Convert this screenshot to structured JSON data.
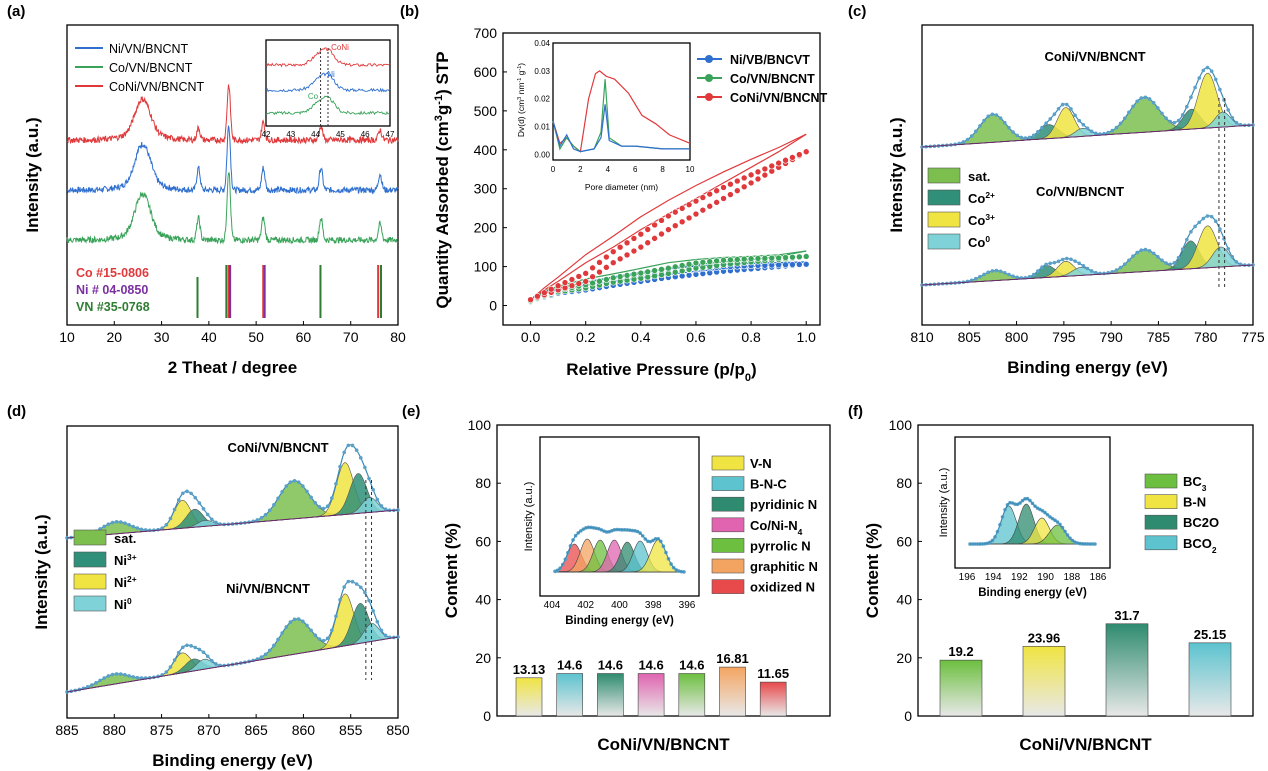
{
  "colors": {
    "blue": "#2e6fcf",
    "green": "#3aa35a",
    "red": "#e0393b",
    "darkred": "#c0282a",
    "dkgreen": "#2e7d32",
    "purple": "#7b2fa0",
    "sat": "#7cbf4f",
    "co2": "#2f8f78",
    "co3": "#f0e442",
    "co0": "#7fd3d8",
    "envelope": "#3a8bb5"
  },
  "panel_labels": [
    "(a)",
    "(b)",
    "(c)",
    "(d)",
    "(e)",
    "(f)"
  ],
  "chart_data": [
    {
      "panel": "(a)",
      "type": "line",
      "xlabel": "2 Theat / degree",
      "ylabel": "Intensity (a.u.)",
      "xlim": [
        10,
        80
      ],
      "xticks": [
        "10",
        "20",
        "30",
        "40",
        "50",
        "60",
        "70",
        "80"
      ],
      "series": [
        {
          "name": "Ni/VN/BNCNT",
          "color": "#2e6fcf"
        },
        {
          "name": "Co/VN/BNCNT",
          "color": "#3aa35a"
        },
        {
          "name": "CoNi/VN/BNCNT",
          "color": "#e0393b"
        }
      ],
      "peaks_deg": [
        26,
        37.8,
        44.2,
        51.5,
        63.7,
        76.2
      ],
      "reference_cards": [
        {
          "label": "Co #15-0806",
          "color": "#e0393b",
          "lines": [
            44.2,
            51.5,
            75.8
          ]
        },
        {
          "label": "Ni # 04-0850",
          "color": "#7b2fa0",
          "lines": [
            44.5,
            51.8,
            76.4
          ]
        },
        {
          "label": "VN #35-0768",
          "color": "#2e7d32",
          "lines": [
            37.6,
            43.7,
            63.6,
            76.4
          ]
        }
      ],
      "inset": {
        "xlim": [
          42,
          47
        ],
        "xticks": [
          "42",
          "43",
          "44",
          "45",
          "46",
          "47"
        ],
        "labels": [
          "CoNi",
          "Ni",
          "Co"
        ]
      }
    },
    {
      "panel": "(b)",
      "type": "line",
      "xlabel": "Relative Pressure (p/p0)",
      "ylabel": "Quantity Adsorbed (cm3g-1) STP",
      "xlim": [
        -0.1,
        1.05
      ],
      "ylim": [
        -50,
        700
      ],
      "xticks": [
        "0.0",
        "0.2",
        "0.4",
        "0.6",
        "0.8",
        "1.0"
      ],
      "yticks": [
        "0",
        "100",
        "200",
        "300",
        "400",
        "500",
        "600",
        "700"
      ],
      "series": [
        {
          "name": "Ni/VB/BNCVT",
          "color": "#2e6fcf",
          "x": [
            0,
            0.05,
            0.1,
            0.2,
            0.3,
            0.4,
            0.5,
            0.6,
            0.7,
            0.8,
            0.9,
            1.0
          ],
          "y": [
            10,
            32,
            40,
            52,
            62,
            72,
            80,
            88,
            94,
            100,
            106,
            112
          ]
        },
        {
          "name": "Co/VN/BNCNT",
          "color": "#3aa35a",
          "x": [
            0,
            0.05,
            0.1,
            0.2,
            0.3,
            0.4,
            0.5,
            0.6,
            0.7,
            0.8,
            0.9,
            1.0
          ],
          "y": [
            12,
            35,
            45,
            60,
            70,
            82,
            96,
            105,
            112,
            118,
            126,
            140
          ]
        },
        {
          "name": "CoNi/VN/BNCNT",
          "color": "#e0393b",
          "x": [
            0,
            0.05,
            0.1,
            0.2,
            0.3,
            0.4,
            0.5,
            0.6,
            0.7,
            0.8,
            0.9,
            1.0
          ],
          "y": [
            15,
            40,
            62,
            110,
            150,
            195,
            235,
            275,
            315,
            355,
            395,
            440
          ]
        }
      ],
      "inset": {
        "xlabel": "Pore diameter (nm)",
        "ylabel": "Dv(d) (cm3 nm-1 g-1)",
        "xticks": [
          "0",
          "2",
          "4",
          "6",
          "8",
          "10"
        ],
        "yticks": [
          "0.00",
          "0.01",
          "0.02",
          "0.03",
          "0.04"
        ]
      }
    },
    {
      "panel": "(c)",
      "type": "area",
      "xlabel": "Binding energy (eV)",
      "ylabel": "Intensity (a.u.)",
      "xlim": [
        810,
        775
      ],
      "xticks": [
        "810",
        "805",
        "800",
        "795",
        "790",
        "785",
        "780",
        "775"
      ],
      "curve_labels": [
        "CoNi/VN/BNCNT",
        "Co/VN/BNCNT"
      ],
      "legend": [
        "sat.",
        "Co2+",
        "Co3+",
        "Co0"
      ],
      "peaks_eV": {
        "sat": [
          802.5,
          786.5
        ],
        "co2": [
          796.5,
          781.5
        ],
        "co3": [
          794.8,
          779.8
        ],
        "co0": [
          793.2,
          778.2
        ]
      }
    },
    {
      "panel": "(d)",
      "type": "area",
      "xlabel": "Binding energy (eV)",
      "ylabel": "Intensity (a.u.)",
      "xlim": [
        885,
        850
      ],
      "xticks": [
        "885",
        "880",
        "875",
        "870",
        "865",
        "860",
        "855",
        "850"
      ],
      "curve_labels": [
        "CoNi/VN/BNCNT",
        "Ni/VN/BNCNT"
      ],
      "legend": [
        "sat.",
        "Ni3+",
        "Ni2+",
        "Ni0"
      ],
      "peaks_eV": {
        "sat": [
          879.8,
          861
        ],
        "ni3": [
          872.8,
          855.5
        ],
        "ni2": [
          871.5,
          854.2
        ],
        "ni0": [
          870.5,
          853
        ]
      }
    },
    {
      "panel": "(e)",
      "type": "bar",
      "xlabel": "CoNi/VN/BNCNT",
      "ylabel": "Content (%)",
      "ylim": [
        0,
        100
      ],
      "yticks": [
        "0",
        "20",
        "40",
        "60",
        "80",
        "100"
      ],
      "categories": [
        "V-N",
        "B-N-C",
        "pyridinic N",
        "Co/Ni-N4",
        "pyrrolic N",
        "graphitic N",
        "oxidized N"
      ],
      "values": [
        13.13,
        14.6,
        14.6,
        14.6,
        14.6,
        16.81,
        11.65
      ],
      "value_labels": [
        "13.13",
        "14.6",
        "14.6",
        "14.6",
        "14.6",
        "16.81",
        "11.65"
      ],
      "bar_colors": [
        "#f0e442",
        "#5cc3cf",
        "#2e8b6f",
        "#e064b0",
        "#6cbf3f",
        "#f4a461",
        "#e8494b"
      ],
      "inset": {
        "xlabel": "Binding energy (eV)",
        "ylabel": "Intensity (a.u.)",
        "xticks": [
          "404",
          "402",
          "400",
          "398",
          "396"
        ]
      }
    },
    {
      "panel": "(f)",
      "type": "bar",
      "xlabel": "CoNi/VN/BNCNT",
      "ylabel": "Content (%)",
      "ylim": [
        0,
        100
      ],
      "yticks": [
        "0",
        "20",
        "40",
        "60",
        "80",
        "100"
      ],
      "categories": [
        "BC3",
        "B-N",
        "BC2O",
        "BCO2"
      ],
      "values": [
        19.2,
        23.96,
        31.7,
        25.15
      ],
      "value_labels": [
        "19.2",
        "23.96",
        "31.7",
        "25.15"
      ],
      "bar_colors": [
        "#6cbf3f",
        "#f0e442",
        "#2e8b6f",
        "#5cc3cf"
      ],
      "inset": {
        "xlabel": "Binding energy (eV)",
        "ylabel": "Intensity (a.u.)",
        "xticks": [
          "196",
          "194",
          "192",
          "190",
          "188",
          "186"
        ]
      }
    }
  ]
}
